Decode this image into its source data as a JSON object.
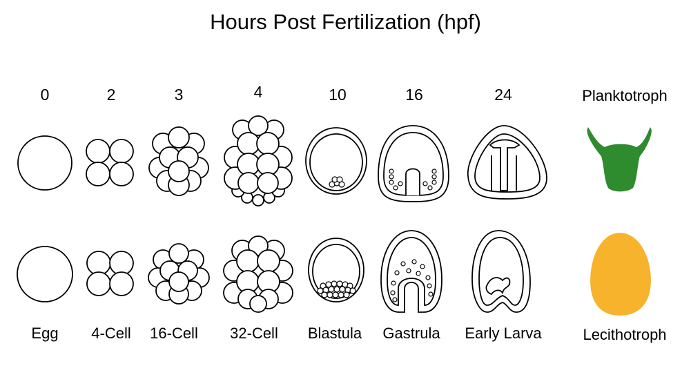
{
  "title": "Hours Post Fertilization (hpf)",
  "hours": [
    "0",
    "2",
    "3",
    "4",
    "10",
    "16",
    "24"
  ],
  "stages": [
    "Egg",
    "4-Cell",
    "16-Cell",
    "32-Cell",
    "Blastula",
    "Gastrula",
    "Early Larva"
  ],
  "row_labels": {
    "top": "Planktotroph",
    "bottom": "Lecithotroph"
  },
  "colors": {
    "planktotroph": "#2e8b2e",
    "lecithotroph": "#f7b32b"
  }
}
